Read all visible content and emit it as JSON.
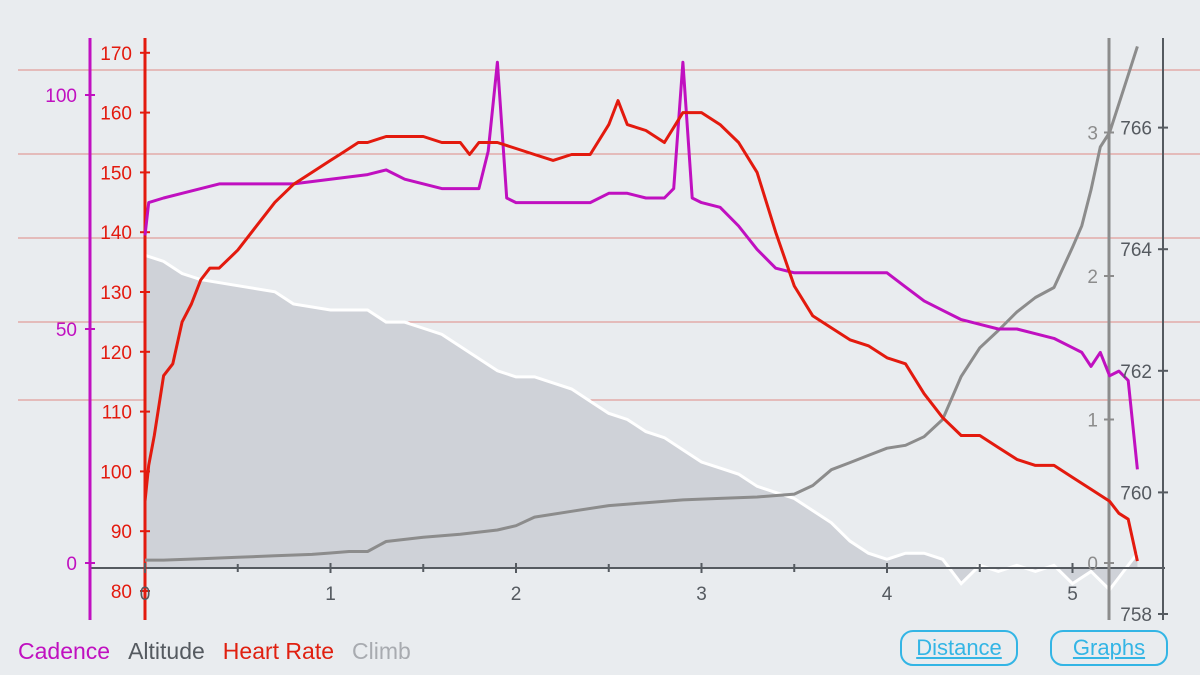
{
  "legend": [
    {
      "label": "Cadence",
      "color": "#c010c0"
    },
    {
      "label": "Altitude",
      "color": "#555a60"
    },
    {
      "label": "Heart Rate",
      "color": "#e02010"
    },
    {
      "label": "Climb",
      "color": "#a8abb0"
    }
  ],
  "buttons": {
    "distance": "Distance",
    "graphs": "Graphs"
  },
  "colors": {
    "cadence": "#c010c0",
    "heart_rate": "#e31a0e",
    "altitude_fill": "#cfd2d8",
    "altitude_line": "#ffffff",
    "climb": "#8c8c8c",
    "axis": "#555a60",
    "gridline": "#e08a86"
  },
  "chart_data": {
    "type": "line",
    "x": {
      "label": "",
      "range": [
        0,
        5.4
      ],
      "ticks": [
        "0",
        "1",
        "2",
        "3",
        "4",
        "5"
      ]
    },
    "axes": {
      "heart_rate": {
        "range": [
          80,
          170
        ],
        "ticks": [
          "80",
          "90",
          "100",
          "110",
          "120",
          "130",
          "140",
          "150",
          "160",
          "170"
        ]
      },
      "cadence": {
        "range": [
          0,
          100
        ],
        "ticks": [
          "0",
          "50",
          "100"
        ]
      },
      "altitude": {
        "range": [
          758,
          767
        ],
        "ticks": [
          "758",
          "760",
          "762",
          "764",
          "766"
        ]
      },
      "climb": {
        "range": [
          0,
          3
        ],
        "ticks": [
          "0",
          "1",
          "2",
          "3"
        ]
      }
    },
    "series": [
      {
        "name": "Heart Rate",
        "axis": "heart_rate",
        "x": [
          0,
          0.02,
          0.05,
          0.1,
          0.15,
          0.2,
          0.25,
          0.3,
          0.35,
          0.4,
          0.5,
          0.6,
          0.7,
          0.8,
          0.9,
          1.0,
          1.05,
          1.1,
          1.15,
          1.2,
          1.3,
          1.4,
          1.5,
          1.6,
          1.7,
          1.75,
          1.8,
          1.85,
          1.9,
          2.0,
          2.1,
          2.2,
          2.3,
          2.4,
          2.5,
          2.55,
          2.6,
          2.7,
          2.8,
          2.9,
          3.0,
          3.1,
          3.2,
          3.3,
          3.4,
          3.5,
          3.6,
          3.7,
          3.8,
          3.9,
          4.0,
          4.1,
          4.2,
          4.3,
          4.4,
          4.5,
          4.6,
          4.7,
          4.8,
          4.9,
          5.0,
          5.1,
          5.2,
          5.25,
          5.3,
          5.35
        ],
        "values": [
          95,
          101,
          106,
          116,
          118,
          125,
          128,
          132,
          134,
          134,
          137,
          141,
          145,
          148,
          150,
          152,
          153,
          154,
          155,
          155,
          156,
          156,
          156,
          155,
          155,
          153,
          155,
          155,
          155,
          154,
          153,
          152,
          153,
          153,
          158,
          162,
          158,
          157,
          155,
          160,
          160,
          158,
          155,
          150,
          140,
          131,
          126,
          124,
          122,
          121,
          119,
          118,
          113,
          109,
          106,
          106,
          104,
          102,
          101,
          101,
          99,
          97,
          95,
          93,
          92,
          85
        ]
      },
      {
        "name": "Cadence",
        "axis": "cadence",
        "x": [
          0,
          0.02,
          0.1,
          0.2,
          0.4,
          0.6,
          0.8,
          1.0,
          1.2,
          1.3,
          1.4,
          1.6,
          1.8,
          1.85,
          1.9,
          1.95,
          2.0,
          2.2,
          2.4,
          2.5,
          2.6,
          2.7,
          2.8,
          2.85,
          2.9,
          2.95,
          3.0,
          3.1,
          3.2,
          3.3,
          3.4,
          3.5,
          3.6,
          3.7,
          3.8,
          3.9,
          4.0,
          4.1,
          4.2,
          4.3,
          4.4,
          4.5,
          4.6,
          4.7,
          4.8,
          4.9,
          5.0,
          5.05,
          5.1,
          5.15,
          5.2,
          5.25,
          5.3,
          5.35
        ],
        "values": [
          70,
          77,
          78,
          79,
          81,
          81,
          81,
          82,
          83,
          84,
          82,
          80,
          80,
          88,
          107,
          78,
          77,
          77,
          77,
          79,
          79,
          78,
          78,
          80,
          107,
          78,
          77,
          76,
          72,
          67,
          63,
          62,
          62,
          62,
          62,
          62,
          62,
          59,
          56,
          54,
          52,
          51,
          50,
          50,
          49,
          48,
          46,
          45,
          42,
          45,
          40,
          41,
          39,
          20
        ]
      },
      {
        "name": "Altitude",
        "axis": "altitude",
        "x": [
          0,
          0.1,
          0.2,
          0.3,
          0.5,
          0.7,
          0.8,
          1.0,
          1.2,
          1.3,
          1.4,
          1.5,
          1.6,
          1.7,
          1.8,
          1.9,
          2.0,
          2.1,
          2.2,
          2.3,
          2.4,
          2.5,
          2.6,
          2.7,
          2.8,
          2.9,
          3.0,
          3.1,
          3.2,
          3.3,
          3.4,
          3.5,
          3.6,
          3.7,
          3.8,
          3.9,
          4.0,
          4.1,
          4.2,
          4.3,
          4.4,
          4.5,
          4.6,
          4.7,
          4.8,
          4.9,
          5.0,
          5.1,
          5.2,
          5.25,
          5.3,
          5.35
        ],
        "values": [
          763.9,
          763.8,
          763.6,
          763.5,
          763.4,
          763.3,
          763.1,
          763.0,
          763.0,
          762.8,
          762.8,
          762.7,
          762.6,
          762.4,
          762.2,
          762.0,
          761.9,
          761.9,
          761.8,
          761.7,
          761.5,
          761.3,
          761.2,
          761.0,
          760.9,
          760.7,
          760.5,
          760.4,
          760.3,
          760.1,
          760.0,
          759.9,
          759.7,
          759.5,
          759.2,
          759.0,
          758.9,
          759.0,
          759.0,
          758.9,
          758.5,
          758.8,
          758.7,
          758.8,
          758.7,
          758.8,
          758.5,
          758.7,
          758.4,
          758.6,
          758.8,
          759.0
        ]
      },
      {
        "name": "Climb",
        "axis": "climb",
        "x": [
          0,
          0.1,
          0.3,
          0.5,
          0.7,
          0.9,
          1.0,
          1.1,
          1.2,
          1.3,
          1.5,
          1.7,
          1.9,
          2.0,
          2.1,
          2.3,
          2.5,
          2.7,
          2.9,
          3.1,
          3.3,
          3.5,
          3.6,
          3.7,
          3.8,
          3.9,
          4.0,
          4.1,
          4.2,
          4.3,
          4.4,
          4.5,
          4.6,
          4.7,
          4.8,
          4.9,
          5.0,
          5.05,
          5.1,
          5.15,
          5.2,
          5.25,
          5.3,
          5.35
        ],
        "values": [
          0.02,
          0.02,
          0.03,
          0.04,
          0.05,
          0.06,
          0.07,
          0.08,
          0.08,
          0.15,
          0.18,
          0.2,
          0.23,
          0.26,
          0.32,
          0.36,
          0.4,
          0.42,
          0.44,
          0.45,
          0.46,
          0.48,
          0.54,
          0.65,
          0.7,
          0.75,
          0.8,
          0.82,
          0.88,
          1.0,
          1.3,
          1.5,
          1.62,
          1.75,
          1.85,
          1.92,
          2.2,
          2.35,
          2.6,
          2.9,
          3.0,
          3.2,
          3.4,
          3.6
        ]
      }
    ]
  }
}
